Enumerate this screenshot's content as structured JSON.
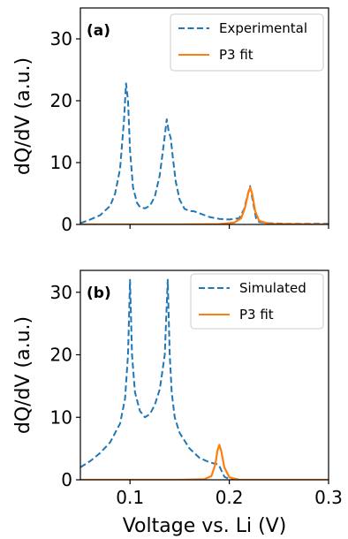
{
  "chart_data": [
    {
      "type": "line",
      "panel_label": "(a)",
      "ylabel": "dQ/dV (a.u.)",
      "xlim": [
        0.05,
        0.3
      ],
      "ylim": [
        0,
        35
      ],
      "xticks": [
        0.1,
        0.2,
        0.3
      ],
      "yticks": [
        0,
        10,
        20,
        30
      ],
      "show_x_tick_labels": false,
      "grid": false,
      "legend_position": "top-right",
      "series": [
        {
          "name": "Experimental",
          "style": "dashed",
          "color": "#1f77b4",
          "x": [
            0.05,
            0.06,
            0.07,
            0.08,
            0.085,
            0.09,
            0.094,
            0.096,
            0.098,
            0.1,
            0.103,
            0.107,
            0.11,
            0.115,
            0.12,
            0.125,
            0.13,
            0.134,
            0.137,
            0.139,
            0.141,
            0.143,
            0.146,
            0.15,
            0.155,
            0.16,
            0.165,
            0.17,
            0.175,
            0.18,
            0.19,
            0.2,
            0.21,
            0.215,
            0.218,
            0.221,
            0.224,
            0.227,
            0.23,
            0.24,
            0.26,
            0.28,
            0.3
          ],
          "y": [
            0.2,
            0.8,
            1.5,
            3.0,
            5.0,
            9.0,
            17.0,
            22.8,
            20.0,
            12.0,
            6.0,
            3.5,
            2.8,
            2.6,
            3.0,
            4.5,
            8.0,
            13.0,
            17.0,
            15.0,
            14.0,
            11.0,
            7.0,
            4.0,
            2.5,
            2.2,
            2.1,
            1.8,
            1.5,
            1.2,
            0.9,
            0.8,
            1.0,
            2.5,
            4.5,
            6.2,
            3.5,
            1.0,
            0.4,
            0.2,
            0.1,
            0.1,
            0.1
          ]
        },
        {
          "name": "P3 fit",
          "style": "solid",
          "color": "#ff7f0e",
          "x": [
            0.05,
            0.1,
            0.15,
            0.19,
            0.205,
            0.212,
            0.216,
            0.219,
            0.221,
            0.223,
            0.226,
            0.23,
            0.24,
            0.3
          ],
          "y": [
            0.0,
            0.0,
            0.0,
            0.05,
            0.3,
            1.0,
            2.8,
            5.0,
            6.0,
            5.0,
            2.2,
            0.6,
            0.1,
            0.0
          ]
        }
      ]
    },
    {
      "type": "line",
      "panel_label": "(b)",
      "ylabel": "dQ/dV (a.u.)",
      "xlabel": "Voltage vs. Li (V)",
      "xlim": [
        0.05,
        0.3
      ],
      "ylim": [
        0,
        33.5
      ],
      "xticks": [
        0.1,
        0.2,
        0.3
      ],
      "yticks": [
        0,
        10,
        20,
        30
      ],
      "show_x_tick_labels": true,
      "grid": false,
      "legend_position": "top-right",
      "series": [
        {
          "name": "Simulated",
          "style": "dashed",
          "color": "#1f77b4",
          "x": [
            0.05,
            0.06,
            0.07,
            0.08,
            0.09,
            0.095,
            0.098,
            0.1,
            0.102,
            0.105,
            0.11,
            0.115,
            0.12,
            0.125,
            0.13,
            0.135,
            0.138,
            0.14,
            0.142,
            0.145,
            0.15,
            0.16,
            0.17,
            0.18,
            0.185,
            0.188,
            0.19,
            0.192,
            0.195,
            0.2,
            0.21,
            0.25,
            0.3
          ],
          "y": [
            2.0,
            3.0,
            4.3,
            6.0,
            9.0,
            13.0,
            20.0,
            32.0,
            20.0,
            14.0,
            11.0,
            10.0,
            10.5,
            12.0,
            14.5,
            20.0,
            32.0,
            20.0,
            14.0,
            10.0,
            7.5,
            5.0,
            3.5,
            2.8,
            2.6,
            2.5,
            2.2,
            1.5,
            0.5,
            0.1,
            0.0,
            0.0,
            0.0
          ]
        },
        {
          "name": "P3 fit",
          "style": "solid",
          "color": "#ff7f0e",
          "x": [
            0.05,
            0.1,
            0.15,
            0.175,
            0.182,
            0.186,
            0.188,
            0.19,
            0.192,
            0.195,
            0.2,
            0.21,
            0.3
          ],
          "y": [
            0.0,
            0.0,
            0.0,
            0.1,
            0.6,
            2.5,
            4.6,
            5.6,
            4.5,
            2.0,
            0.4,
            0.0,
            0.0
          ]
        }
      ]
    }
  ]
}
